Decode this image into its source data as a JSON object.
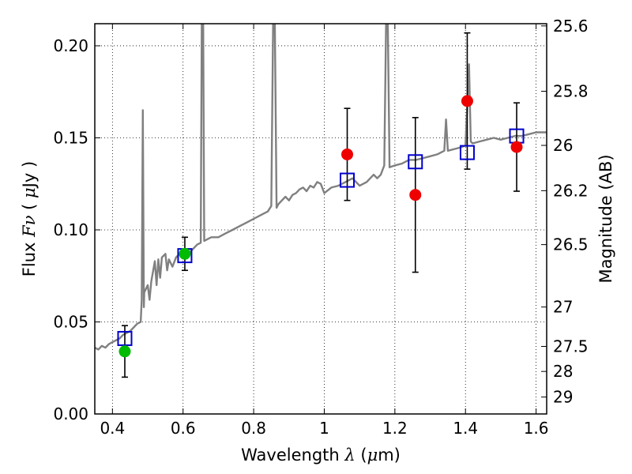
{
  "chart_data": {
    "type": "scatter",
    "title": "",
    "xlabel": "Wavelength  λ (μm)",
    "ylabel": "Flux  Fν  ( μJy )",
    "ylabel_right": "Magnitude (AB)",
    "xlim": [
      0.35,
      1.63
    ],
    "ylim": [
      0.0,
      0.212
    ],
    "x_ticks": [
      0.4,
      0.6,
      0.8,
      1.0,
      1.2,
      1.4,
      1.6
    ],
    "x_tick_labels": [
      "0.4",
      "0.6",
      "0.8",
      "1",
      "1.2",
      "1.4",
      "1.6"
    ],
    "y_ticks": [
      0.0,
      0.05,
      0.1,
      0.15,
      0.2
    ],
    "y_tick_labels": [
      "0.00",
      "0.05",
      "0.10",
      "0.15",
      "0.20"
    ],
    "right_ticks": [
      {
        "label": "25.6",
        "flux": 0.2108
      },
      {
        "label": "25.8",
        "flux": 0.1753
      },
      {
        "label": "26",
        "flux": 0.1459
      },
      {
        "label": "26.2",
        "flux": 0.1213
      },
      {
        "label": "26.5",
        "flux": 0.092
      },
      {
        "label": "27",
        "flux": 0.0581
      },
      {
        "label": "27.5",
        "flux": 0.0367
      },
      {
        "label": "28",
        "flux": 0.0231
      },
      {
        "label": "29",
        "flux": 0.0092
      }
    ],
    "grid": true,
    "colors": {
      "spectrum": "#808080",
      "model_box": "#0000cc",
      "photometry_green": "#00bb00",
      "photometry_red": "#ee0000",
      "errorbar": "#000000"
    },
    "series": [
      {
        "kind": "line",
        "points": [
          [
            0.35,
            0.036
          ],
          [
            0.36,
            0.035
          ],
          [
            0.37,
            0.037
          ],
          [
            0.38,
            0.036
          ],
          [
            0.39,
            0.038
          ],
          [
            0.4,
            0.039
          ],
          [
            0.41,
            0.04
          ],
          [
            0.42,
            0.041
          ],
          [
            0.43,
            0.043
          ],
          [
            0.44,
            0.044
          ],
          [
            0.45,
            0.045
          ],
          [
            0.46,
            0.047
          ],
          [
            0.47,
            0.049
          ],
          [
            0.48,
            0.05
          ],
          [
            0.483,
            0.062
          ],
          [
            0.486,
            0.165
          ],
          [
            0.489,
            0.058
          ],
          [
            0.49,
            0.066
          ],
          [
            0.5,
            0.07
          ],
          [
            0.505,
            0.062
          ],
          [
            0.51,
            0.072
          ],
          [
            0.52,
            0.083
          ],
          [
            0.525,
            0.07
          ],
          [
            0.53,
            0.084
          ],
          [
            0.535,
            0.074
          ],
          [
            0.54,
            0.085
          ],
          [
            0.55,
            0.087
          ],
          [
            0.555,
            0.078
          ],
          [
            0.56,
            0.084
          ],
          [
            0.57,
            0.08
          ],
          [
            0.58,
            0.085
          ],
          [
            0.59,
            0.087
          ],
          [
            0.6,
            0.087
          ],
          [
            0.61,
            0.085
          ],
          [
            0.62,
            0.088
          ],
          [
            0.63,
            0.09
          ],
          [
            0.64,
            0.092
          ],
          [
            0.65,
            0.093
          ],
          [
            0.653,
            0.212
          ],
          [
            0.657,
            0.212
          ],
          [
            0.66,
            0.094
          ],
          [
            0.67,
            0.095
          ],
          [
            0.68,
            0.096
          ],
          [
            0.7,
            0.096
          ],
          [
            0.72,
            0.098
          ],
          [
            0.74,
            0.1
          ],
          [
            0.76,
            0.102
          ],
          [
            0.78,
            0.104
          ],
          [
            0.8,
            0.106
          ],
          [
            0.82,
            0.108
          ],
          [
            0.84,
            0.11
          ],
          [
            0.85,
            0.113
          ],
          [
            0.855,
            0.212
          ],
          [
            0.86,
            0.212
          ],
          [
            0.865,
            0.112
          ],
          [
            0.87,
            0.114
          ],
          [
            0.88,
            0.116
          ],
          [
            0.89,
            0.118
          ],
          [
            0.9,
            0.116
          ],
          [
            0.91,
            0.119
          ],
          [
            0.92,
            0.12
          ],
          [
            0.93,
            0.122
          ],
          [
            0.94,
            0.123
          ],
          [
            0.95,
            0.121
          ],
          [
            0.96,
            0.124
          ],
          [
            0.97,
            0.123
          ],
          [
            0.98,
            0.126
          ],
          [
            0.99,
            0.125
          ],
          [
            1.0,
            0.12
          ],
          [
            1.02,
            0.123
          ],
          [
            1.04,
            0.124
          ],
          [
            1.06,
            0.126
          ],
          [
            1.08,
            0.128
          ],
          [
            1.1,
            0.124
          ],
          [
            1.12,
            0.126
          ],
          [
            1.14,
            0.13
          ],
          [
            1.15,
            0.128
          ],
          [
            1.16,
            0.13
          ],
          [
            1.17,
            0.135
          ],
          [
            1.175,
            0.212
          ],
          [
            1.18,
            0.212
          ],
          [
            1.185,
            0.134
          ],
          [
            1.2,
            0.135
          ],
          [
            1.22,
            0.136
          ],
          [
            1.24,
            0.138
          ],
          [
            1.26,
            0.138
          ],
          [
            1.28,
            0.139
          ],
          [
            1.3,
            0.14
          ],
          [
            1.32,
            0.141
          ],
          [
            1.34,
            0.143
          ],
          [
            1.345,
            0.16
          ],
          [
            1.35,
            0.143
          ],
          [
            1.37,
            0.144
          ],
          [
            1.39,
            0.145
          ],
          [
            1.4,
            0.146
          ],
          [
            1.41,
            0.19
          ],
          [
            1.415,
            0.148
          ],
          [
            1.42,
            0.147
          ],
          [
            1.44,
            0.148
          ],
          [
            1.46,
            0.149
          ],
          [
            1.48,
            0.15
          ],
          [
            1.5,
            0.149
          ],
          [
            1.52,
            0.15
          ],
          [
            1.54,
            0.151
          ],
          [
            1.56,
            0.151
          ],
          [
            1.58,
            0.152
          ],
          [
            1.6,
            0.153
          ],
          [
            1.62,
            0.153
          ],
          [
            1.63,
            0.153
          ]
        ]
      },
      {
        "kind": "model_boxes",
        "points": [
          [
            0.435,
            0.041
          ],
          [
            0.605,
            0.086
          ],
          [
            1.065,
            0.127
          ],
          [
            1.258,
            0.137
          ],
          [
            1.405,
            0.142
          ],
          [
            1.545,
            0.151
          ]
        ]
      },
      {
        "kind": "green_points",
        "points": [
          {
            "x": 0.435,
            "y": 0.034,
            "yerr_low": 0.02,
            "yerr_high": 0.048
          },
          {
            "x": 0.605,
            "y": 0.087,
            "yerr_low": 0.078,
            "yerr_high": 0.096
          }
        ]
      },
      {
        "kind": "red_points",
        "points": [
          {
            "x": 1.065,
            "y": 0.141,
            "yerr_low": 0.116,
            "yerr_high": 0.166
          },
          {
            "x": 1.258,
            "y": 0.119,
            "yerr_low": 0.077,
            "yerr_high": 0.161
          },
          {
            "x": 1.405,
            "y": 0.17,
            "yerr_low": 0.133,
            "yerr_high": 0.207
          },
          {
            "x": 1.545,
            "y": 0.145,
            "yerr_low": 0.121,
            "yerr_high": 0.169
          }
        ]
      }
    ]
  }
}
